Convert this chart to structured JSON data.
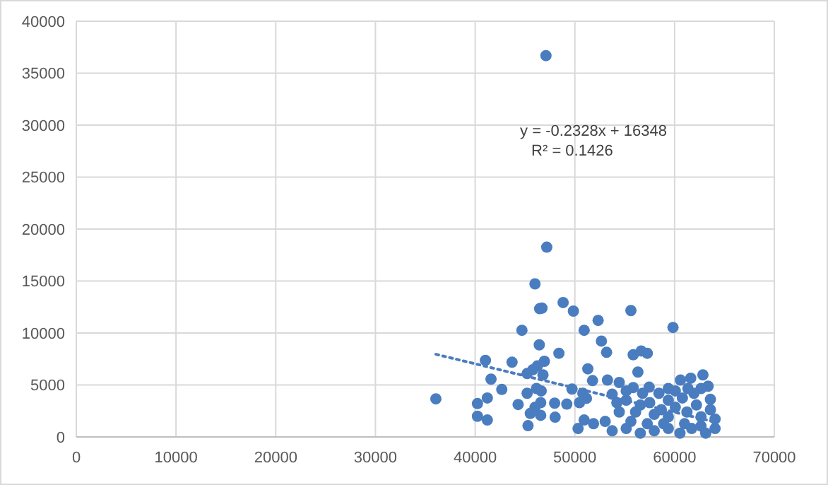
{
  "chart_data": {
    "type": "scatter",
    "xlim": [
      0,
      70000
    ],
    "ylim": [
      0,
      40000
    ],
    "xticks": [
      0,
      10000,
      20000,
      30000,
      40000,
      50000,
      60000,
      70000
    ],
    "yticks": [
      0,
      5000,
      10000,
      15000,
      20000,
      25000,
      30000,
      35000,
      40000
    ],
    "grid": true,
    "marker": "circle",
    "annotations": [
      "y = -0.2328x + 16348",
      "R² = 0.1426"
    ],
    "series": [
      {
        "color": "#4a7dbf",
        "x": [
          47100,
          36060,
          47180,
          46000,
          46470,
          46700,
          48820,
          49850,
          55620,
          52330,
          44690,
          50930,
          59840,
          52660,
          46430,
          53180,
          48400,
          55850,
          56650,
          57260,
          41030,
          43700,
          46940,
          46240,
          45770,
          45210,
          46800,
          41590,
          51300,
          56320,
          51770,
          53270,
          54450,
          60590,
          61620,
          62840,
          63360,
          57450,
          55850,
          53740,
          49710,
          46150,
          46620,
          42670,
          41220,
          40230,
          45210,
          50800,
          51160,
          44310,
          46570,
          47970,
          49190,
          50460,
          63590,
          60070,
          46000,
          45530,
          46570,
          48020,
          40230,
          41220,
          45300,
          50320,
          50930,
          51870,
          53040,
          54210,
          55150,
          56560,
          57500,
          54450,
          56090,
          57960,
          59370,
          60780,
          62190,
          63590,
          61240,
          62650,
          59370,
          53740,
          55150,
          56560,
          57960,
          59370,
          60540,
          61710,
          63120,
          64060,
          64060,
          58900,
          55620,
          57260,
          61000,
          62650,
          58670,
          60070,
          61940,
          58430,
          55150,
          56790,
          59370,
          62650,
          61340
        ],
        "values": [
          36690,
          3660,
          18260,
          14730,
          12340,
          12400,
          12930,
          12110,
          12160,
          11210,
          10260,
          10260,
          10530,
          9220,
          8860,
          8140,
          8050,
          7910,
          8270,
          8050,
          7370,
          7190,
          7280,
          6830,
          6460,
          6100,
          5970,
          5560,
          6550,
          6240,
          5420,
          5470,
          5240,
          5470,
          5650,
          5970,
          4880,
          4790,
          4750,
          4110,
          4610,
          4660,
          4430,
          4570,
          3750,
          3210,
          4200,
          4200,
          3710,
          3120,
          3300,
          3250,
          3160,
          3300,
          3620,
          4430,
          2850,
          2260,
          2080,
          1900,
          1990,
          1630,
          1080,
          810,
          1630,
          1270,
          1490,
          3300,
          3530,
          3070,
          3300,
          2400,
          2400,
          2170,
          3530,
          3750,
          3070,
          2620,
          2400,
          1940,
          1940,
          590,
          810,
          360,
          590,
          810,
          360,
          810,
          360,
          810,
          1720,
          1270,
          1490,
          1270,
          1270,
          1040,
          2620,
          2850,
          4200,
          4200,
          4430,
          4200,
          4660,
          4660,
          4660
        ]
      },
      {
        "type": "line",
        "color": "#4a7dbf",
        "line_style": "dotted",
        "marker": "none",
        "x": [
          36060,
          64060
        ],
        "values": [
          7953,
          1435
        ]
      }
    ]
  }
}
